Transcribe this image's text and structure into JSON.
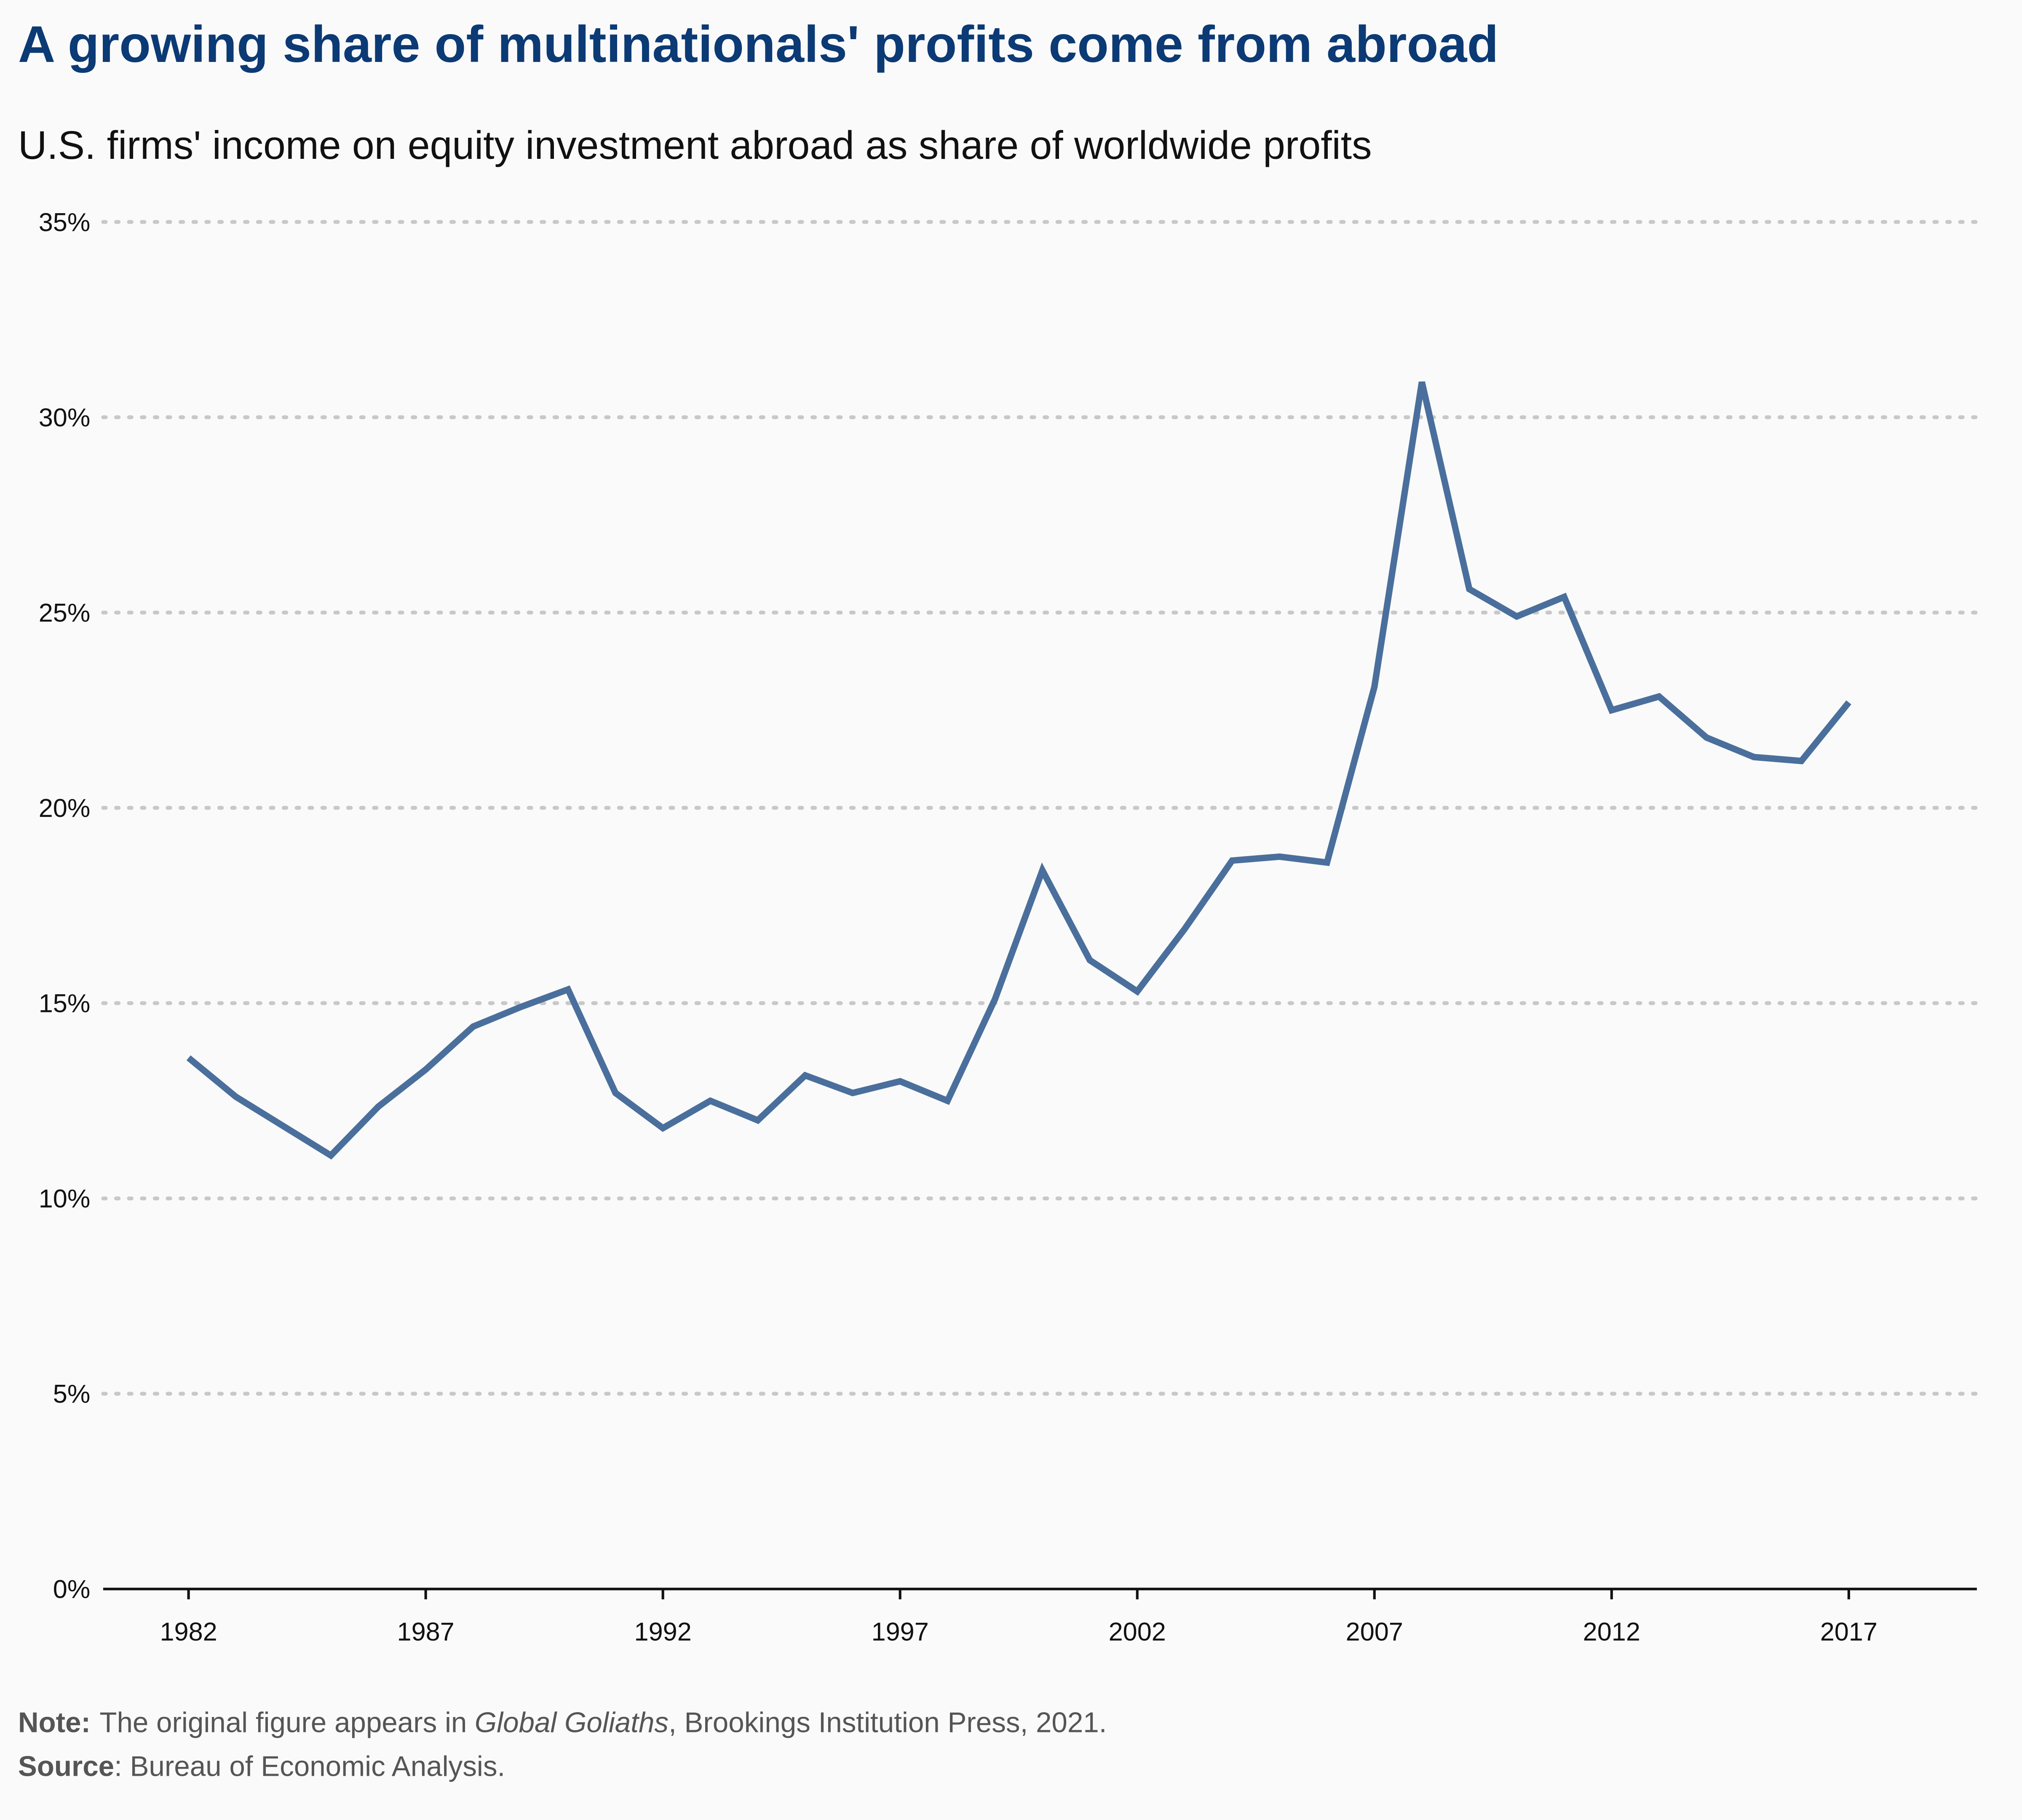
{
  "chart_data": {
    "type": "line",
    "title": "A growing share of multinationals' profits come from abroad",
    "subtitle": "U.S. firms' income on equity investment abroad as share of worldwide profits",
    "x": [
      1982,
      1983,
      1984,
      1985,
      1986,
      1987,
      1988,
      1989,
      1990,
      1991,
      1992,
      1993,
      1994,
      1995,
      1996,
      1997,
      1998,
      1999,
      2000,
      2001,
      2002,
      2003,
      2004,
      2005,
      2006,
      2007,
      2008,
      2009,
      2010,
      2011,
      2012,
      2013,
      2014,
      2015,
      2016,
      2017
    ],
    "values": [
      13.6,
      12.6,
      11.85,
      11.1,
      12.35,
      13.3,
      14.4,
      14.9,
      15.35,
      12.7,
      11.8,
      12.5,
      12.0,
      13.15,
      12.7,
      13.0,
      12.5,
      15.1,
      18.4,
      16.1,
      15.3,
      16.9,
      18.65,
      18.75,
      18.6,
      23.1,
      30.9,
      25.6,
      24.9,
      25.4,
      22.5,
      22.85,
      21.8,
      21.3,
      21.2,
      22.7
    ],
    "color": "#4a6f9c",
    "xlim": [
      1980.2,
      2019.7
    ],
    "xticks": [
      1982,
      1987,
      1992,
      1997,
      2002,
      2007,
      2012,
      2017
    ],
    "ylim": [
      0,
      35
    ],
    "yticks": [
      {
        "value": 0,
        "label": "0%"
      },
      {
        "value": 5,
        "label": "5%"
      },
      {
        "value": 10,
        "label": "10%"
      },
      {
        "value": 15,
        "label": "15%"
      },
      {
        "value": 20,
        "label": "20%"
      },
      {
        "value": 25,
        "label": "25%"
      },
      {
        "value": 30,
        "label": "30%"
      },
      {
        "value": 35,
        "label": "35%"
      }
    ],
    "grid": true,
    "note": {
      "label": "Note:",
      "before": "The original figure appears in",
      "italic": "Global Goliaths",
      "after": ", Brookings Institution Press, 2021."
    },
    "source": {
      "label": "Source",
      "text": ": Bureau of Economic Analysis."
    }
  }
}
